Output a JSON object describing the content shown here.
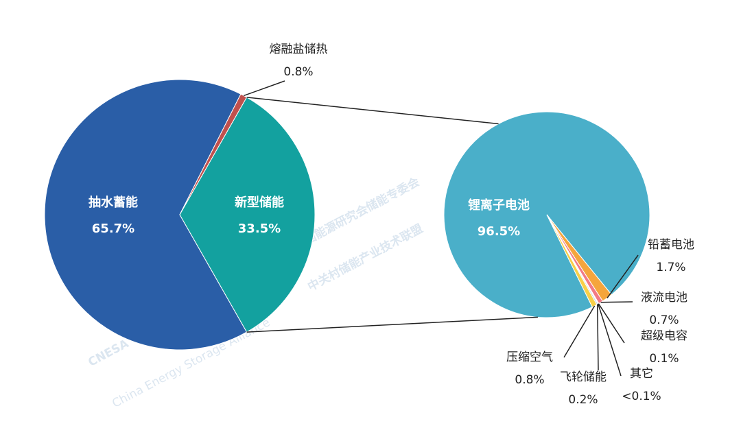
{
  "chart_data": [
    {
      "type": "pie",
      "categories": [
        "抽水蓄能",
        "熔融盐储热",
        "新型储能"
      ],
      "values": [
        65.7,
        0.8,
        33.5
      ],
      "value_labels": [
        "65.7%",
        "0.8%",
        "33.5%"
      ],
      "colors": [
        "#2a5ea7",
        "#c0504d",
        "#13a19f"
      ]
    },
    {
      "type": "pie",
      "categories": [
        "锂离子电池",
        "铅蓄电池",
        "液流电池",
        "超级电容",
        "其它",
        "飞轮储能",
        "压缩空气"
      ],
      "values": [
        96.5,
        1.7,
        0.7,
        0.1,
        0.05,
        0.2,
        0.8
      ],
      "value_labels": [
        "96.5%",
        "1.7%",
        "0.7%",
        "0.1%",
        "<0.1%",
        "0.2%",
        "0.8%"
      ],
      "colors": [
        "#4aafc9",
        "#f5a53c",
        "#f27a86",
        "#9bbb59",
        "#8c8c8c",
        "#b7c9e2",
        "#f7d048"
      ]
    }
  ],
  "watermark": {
    "line1": "中国能源研究会储能专委会",
    "line2": "中关村储能产业技术联盟",
    "logo": "CNESA",
    "subtitle": "China Energy Storage Alliance"
  }
}
